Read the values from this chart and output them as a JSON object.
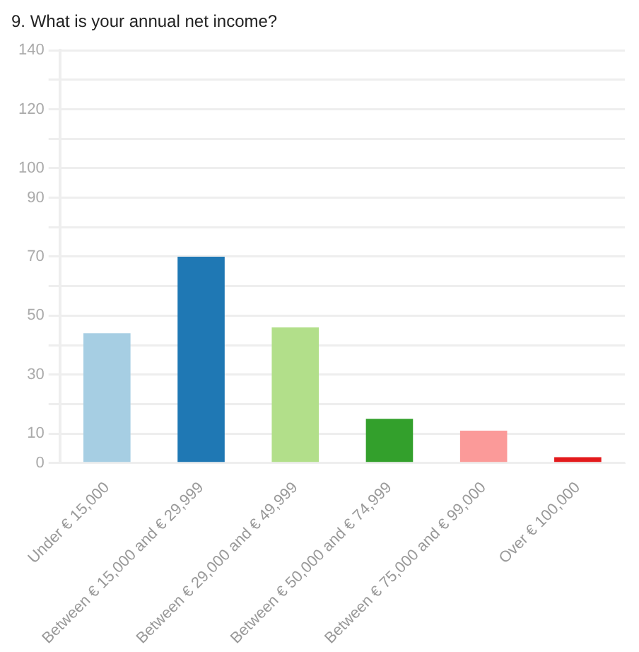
{
  "chart_data": {
    "type": "bar",
    "title": "9. What is your annual net income?",
    "categories": [
      "Under € 15,000",
      "Between € 15,000 and € 29,999",
      "Between € 29,000 and € 49,999",
      "Between € 50,000 and € 74,999",
      "Between € 75,000 and € 99,000",
      "Over € 100,000"
    ],
    "values": [
      44,
      70,
      46,
      15,
      11,
      2
    ],
    "colors": [
      "#a6cee3",
      "#1f78b4",
      "#b2df8a",
      "#33a02c",
      "#fb9a99",
      "#e31a1c"
    ],
    "ylim": [
      0,
      140
    ],
    "yticks": [
      0,
      10,
      {
        "value": 20,
        "label": null
      },
      30,
      {
        "value": 40,
        "label": null
      },
      50,
      {
        "value": 60,
        "label": null
      },
      70,
      {
        "value": 80,
        "label": null
      },
      90,
      100,
      {
        "value": 110,
        "label": null
      },
      120,
      {
        "value": 130,
        "label": null
      },
      140
    ],
    "grid": true,
    "legend": false
  }
}
